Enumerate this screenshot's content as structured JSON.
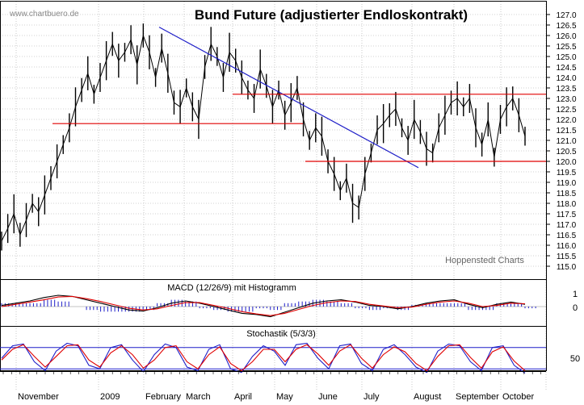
{
  "watermark": "www.chartbuero.de",
  "credit": "Hoppenstedt Charts",
  "chart_data": [
    {
      "type": "line",
      "title": "Bund Future (adjustierter Endloskontrakt)",
      "ylim": [
        114.5,
        127.25
      ],
      "y_ticks": [
        "115.0",
        "115.5",
        "116.0",
        "116.5",
        "117.0",
        "117.5",
        "118.0",
        "118.5",
        "119.0",
        "119.5",
        "120.0",
        "120.5",
        "121.0",
        "121.5",
        "122.0",
        "122.5",
        "123.0",
        "123.5",
        "124.0",
        "124.5",
        "125.0",
        "125.5",
        "126.0",
        "126.5",
        "127.0"
      ],
      "x_ticks": [
        "November",
        "2009",
        "February",
        "March",
        "April",
        "May",
        "June",
        "July",
        "August",
        "September",
        "October"
      ],
      "grid": true,
      "series": [
        {
          "values": [
            116.2,
            116.8,
            117.5,
            116.5,
            117.2,
            118.0,
            117.6,
            118.4,
            119.2,
            120.0,
            120.8,
            121.6,
            122.6,
            123.4,
            124.2,
            123.2,
            124.0,
            124.8,
            125.6,
            124.8,
            125.2,
            125.8,
            124.6,
            126.0,
            125.2,
            124.0,
            125.4,
            124.2,
            122.8,
            122.6,
            123.5,
            122.6,
            122.0,
            124.5,
            125.6,
            125.0,
            124.0,
            125.2,
            124.8,
            124.0,
            123.4,
            123.0,
            124.4,
            123.6,
            122.6,
            123.4,
            122.2,
            122.8,
            123.5,
            122.0,
            121.0,
            121.6,
            121.2,
            120.0,
            119.4,
            118.6,
            119.2,
            118.0,
            117.8,
            119.4,
            120.4,
            121.5,
            121.8,
            122.2,
            122.5,
            121.6,
            121.0,
            122.0,
            121.4,
            120.6,
            120.4,
            121.6,
            122.2,
            122.8,
            123.0,
            122.6,
            123.0,
            121.6,
            120.8,
            122.0,
            120.2,
            122.0,
            122.6,
            123.0,
            122.2,
            121.2
          ],
          "color": "#000000"
        }
      ],
      "annotations": {
        "trendline": {
          "from": [
            45,
            126.4
          ],
          "to": [
            484,
            119.7
          ],
          "color": "#1f1fc8"
        },
        "resistance": {
          "level": 123.2,
          "color": "#e00000"
        },
        "support_upper": {
          "level": 121.8,
          "color": "#e00000"
        },
        "support_lower": {
          "level": 120.0,
          "color": "#e00000"
        }
      }
    },
    {
      "type": "line",
      "title": "MACD (12/26/9) mit Histogramm",
      "y_ticks": [
        "1",
        "0"
      ],
      "series": [
        {
          "values": [
            0.1,
            0.3,
            0.5,
            0.8,
            1.0,
            0.9,
            0.6,
            0.3,
            0.0,
            -0.3,
            -0.4,
            -0.1,
            0.3,
            0.5,
            0.3,
            0.0,
            -0.3,
            -0.6,
            -0.7,
            -0.9,
            -0.5,
            -0.1,
            0.3,
            0.5,
            0.6,
            0.4,
            0.1,
            0.0,
            -0.2,
            0.0,
            0.3,
            0.5,
            0.6,
            0.2,
            -0.1,
            0.2,
            0.4,
            0.2
          ],
          "color": "#000000"
        },
        {
          "values": [
            0.0,
            0.2,
            0.4,
            0.6,
            0.85,
            0.9,
            0.7,
            0.45,
            0.15,
            -0.15,
            -0.3,
            -0.2,
            0.1,
            0.35,
            0.35,
            0.1,
            -0.15,
            -0.45,
            -0.65,
            -0.8,
            -0.6,
            -0.25,
            0.1,
            0.35,
            0.5,
            0.45,
            0.2,
            0.05,
            -0.1,
            -0.05,
            0.2,
            0.4,
            0.5,
            0.3,
            0.0,
            0.1,
            0.3,
            0.25
          ],
          "color": "#e00000"
        }
      ]
    },
    {
      "type": "line",
      "title": "Stochastik (5/3/3)",
      "y_ticks": [
        "50"
      ],
      "series": [
        {
          "values": [
            50,
            85,
            90,
            40,
            15,
            70,
            92,
            85,
            30,
            20,
            80,
            88,
            45,
            12,
            60,
            90,
            80,
            25,
            15,
            75,
            88,
            20,
            10,
            55,
            85,
            70,
            30,
            88,
            92,
            50,
            20,
            85,
            90,
            35,
            15,
            75,
            88,
            60,
            25,
            10,
            70,
            90,
            85,
            40,
            15,
            80,
            85,
            30,
            8
          ],
          "color": "#1f1fc8"
        },
        {
          "values": [
            45,
            75,
            88,
            55,
            25,
            55,
            85,
            88,
            45,
            25,
            65,
            85,
            60,
            22,
            45,
            80,
            85,
            40,
            20,
            60,
            82,
            35,
            15,
            40,
            75,
            75,
            40,
            75,
            88,
            62,
            30,
            70,
            88,
            50,
            22,
            60,
            82,
            68,
            35,
            15,
            55,
            85,
            88,
            52,
            22,
            68,
            82,
            42,
            15
          ],
          "color": "#e00000"
        }
      ]
    }
  ]
}
